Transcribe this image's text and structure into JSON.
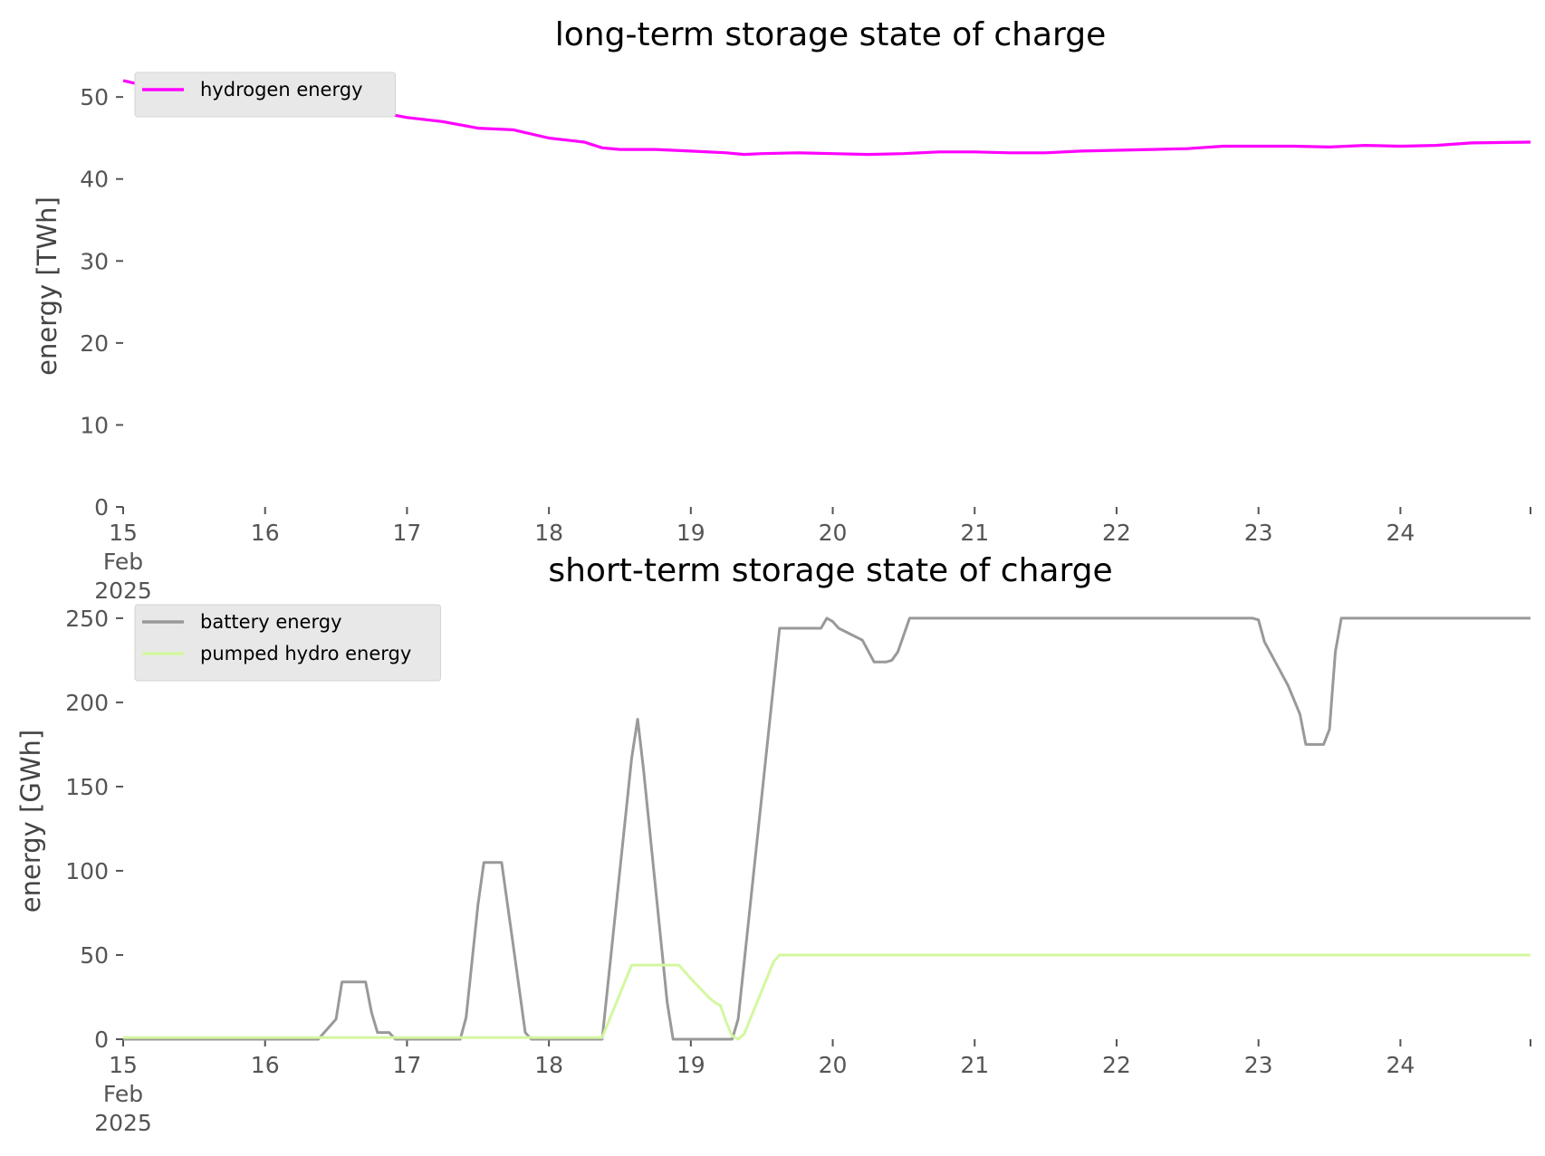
{
  "chart_data": [
    {
      "type": "line",
      "title": "long-term storage state of charge",
      "xlabel": "",
      "ylabel": "energy [TWh]",
      "ylim": [
        0,
        53
      ],
      "yticks": [
        "0",
        "10",
        "20",
        "30",
        "40",
        "50"
      ],
      "xticks": [
        "15\nFeb\n2025",
        "16",
        "17",
        "18",
        "19",
        "20",
        "21",
        "22",
        "23",
        "24"
      ],
      "xlim": [
        "2025-02-15",
        "2025-02-24 22:00"
      ],
      "grid": false,
      "legend_position": "top-left",
      "series": [
        {
          "name": "hydrogen energy",
          "color": "#ff00ff",
          "points": [
            [
              "2025-02-15 00:00",
              52.0
            ],
            [
              "2025-02-15 06:00",
              51.0
            ],
            [
              "2025-02-15 12:00",
              50.5
            ],
            [
              "2025-02-15 18:00",
              50.0
            ],
            [
              "2025-02-16 00:00",
              49.3
            ],
            [
              "2025-02-16 06:00",
              49.0
            ],
            [
              "2025-02-16 12:00",
              48.5
            ],
            [
              "2025-02-16 18:00",
              48.3
            ],
            [
              "2025-02-17 00:00",
              47.5
            ],
            [
              "2025-02-17 06:00",
              47.0
            ],
            [
              "2025-02-17 12:00",
              46.2
            ],
            [
              "2025-02-17 18:00",
              46.0
            ],
            [
              "2025-02-18 00:00",
              45.0
            ],
            [
              "2025-02-18 06:00",
              44.5
            ],
            [
              "2025-02-18 09:00",
              43.8
            ],
            [
              "2025-02-18 12:00",
              43.6
            ],
            [
              "2025-02-18 18:00",
              43.6
            ],
            [
              "2025-02-19 00:00",
              43.4
            ],
            [
              "2025-02-19 06:00",
              43.2
            ],
            [
              "2025-02-19 09:00",
              43.0
            ],
            [
              "2025-02-19 12:00",
              43.1
            ],
            [
              "2025-02-19 18:00",
              43.2
            ],
            [
              "2025-02-20 00:00",
              43.1
            ],
            [
              "2025-02-20 06:00",
              43.0
            ],
            [
              "2025-02-20 12:00",
              43.1
            ],
            [
              "2025-02-20 18:00",
              43.3
            ],
            [
              "2025-02-21 00:00",
              43.3
            ],
            [
              "2025-02-21 06:00",
              43.2
            ],
            [
              "2025-02-21 12:00",
              43.2
            ],
            [
              "2025-02-21 18:00",
              43.4
            ],
            [
              "2025-02-22 00:00",
              43.5
            ],
            [
              "2025-02-22 06:00",
              43.6
            ],
            [
              "2025-02-22 12:00",
              43.7
            ],
            [
              "2025-02-22 18:00",
              44.0
            ],
            [
              "2025-02-23 00:00",
              44.0
            ],
            [
              "2025-02-23 06:00",
              44.0
            ],
            [
              "2025-02-23 12:00",
              43.9
            ],
            [
              "2025-02-23 18:00",
              44.1
            ],
            [
              "2025-02-24 00:00",
              44.0
            ],
            [
              "2025-02-24 06:00",
              44.1
            ],
            [
              "2025-02-24 12:00",
              44.4
            ],
            [
              "2025-02-24 22:00",
              44.5
            ]
          ]
        }
      ]
    },
    {
      "type": "line",
      "title": "short-term storage state of charge",
      "xlabel": "",
      "ylabel": "energy [GWh]",
      "ylim": [
        0,
        258
      ],
      "yticks": [
        "0",
        "50",
        "100",
        "150",
        "200",
        "250"
      ],
      "xticks": [
        "15\nFeb\n2025",
        "16",
        "17",
        "18",
        "19",
        "20",
        "21",
        "22",
        "23",
        "24"
      ],
      "xlim": [
        "2025-02-15",
        "2025-02-24 22:00"
      ],
      "grid": false,
      "legend_position": "top-left",
      "series": [
        {
          "name": "battery energy",
          "color": "#999999",
          "points": [
            [
              "2025-02-15 00:00",
              0
            ],
            [
              "2025-02-16 09:00",
              0
            ],
            [
              "2025-02-16 12:00",
              12
            ],
            [
              "2025-02-16 13:00",
              34
            ],
            [
              "2025-02-16 16:00",
              34
            ],
            [
              "2025-02-16 17:00",
              34
            ],
            [
              "2025-02-16 18:00",
              16
            ],
            [
              "2025-02-16 19:00",
              4
            ],
            [
              "2025-02-16 21:00",
              4
            ],
            [
              "2025-02-16 22:00",
              0
            ],
            [
              "2025-02-17 09:00",
              0
            ],
            [
              "2025-02-17 10:00",
              13
            ],
            [
              "2025-02-17 12:00",
              80
            ],
            [
              "2025-02-17 13:00",
              105
            ],
            [
              "2025-02-17 15:00",
              105
            ],
            [
              "2025-02-17 16:00",
              105
            ],
            [
              "2025-02-17 18:00",
              55
            ],
            [
              "2025-02-17 20:00",
              4
            ],
            [
              "2025-02-17 21:00",
              0
            ],
            [
              "2025-02-18 09:00",
              0
            ],
            [
              "2025-02-18 14:00",
              167
            ],
            [
              "2025-02-18 15:00",
              190
            ],
            [
              "2025-02-18 16:00",
              160
            ],
            [
              "2025-02-18 20:00",
              22
            ],
            [
              "2025-02-18 21:00",
              0
            ],
            [
              "2025-02-19 06:00",
              0
            ],
            [
              "2025-02-19 07:00",
              0
            ],
            [
              "2025-02-19 08:00",
              12
            ],
            [
              "2025-02-19 15:00",
              244
            ],
            [
              "2025-02-19 22:00",
              244
            ],
            [
              "2025-02-19 23:00",
              250
            ],
            [
              "2025-02-20 00:00",
              248
            ],
            [
              "2025-02-20 01:00",
              244
            ],
            [
              "2025-02-20 05:00",
              237
            ],
            [
              "2025-02-20 07:00",
              224
            ],
            [
              "2025-02-20 09:00",
              224
            ],
            [
              "2025-02-20 10:00",
              225
            ],
            [
              "2025-02-20 11:00",
              230
            ],
            [
              "2025-02-20 13:00",
              250
            ],
            [
              "2025-02-22 23:00",
              250
            ],
            [
              "2025-02-23 00:00",
              249
            ],
            [
              "2025-02-23 01:00",
              236
            ],
            [
              "2025-02-23 05:00",
              210
            ],
            [
              "2025-02-23 07:00",
              193
            ],
            [
              "2025-02-23 08:00",
              175
            ],
            [
              "2025-02-23 11:00",
              175
            ],
            [
              "2025-02-23 12:00",
              184
            ],
            [
              "2025-02-23 13:00",
              230
            ],
            [
              "2025-02-23 14:00",
              250
            ],
            [
              "2025-02-24 22:00",
              250
            ]
          ]
        },
        {
          "name": "pumped hydro energy",
          "color": "#d4f7a0",
          "points": [
            [
              "2025-02-15 00:00",
              1
            ],
            [
              "2025-02-18 09:00",
              1
            ],
            [
              "2025-02-18 14:00",
              44
            ],
            [
              "2025-02-18 22:00",
              44
            ],
            [
              "2025-02-19 00:00",
              36
            ],
            [
              "2025-02-19 03:00",
              25
            ],
            [
              "2025-02-19 04:00",
              22
            ],
            [
              "2025-02-19 05:00",
              20
            ],
            [
              "2025-02-19 06:00",
              10
            ],
            [
              "2025-02-19 07:00",
              2
            ],
            [
              "2025-02-19 08:00",
              0
            ],
            [
              "2025-02-19 09:00",
              3
            ],
            [
              "2025-02-19 14:00",
              46
            ],
            [
              "2025-02-19 15:00",
              50
            ],
            [
              "2025-02-19 22:00",
              50
            ],
            [
              "2025-02-24 22:00",
              50
            ]
          ]
        }
      ]
    }
  ]
}
